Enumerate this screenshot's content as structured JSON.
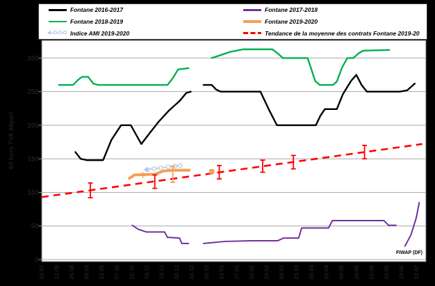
{
  "watermark": "FIWAP (DF)",
  "legend": {
    "col1_keys": [
      "fontane-2016-2017",
      "fontane-2018-2019",
      "indice-ami-2019-2020"
    ],
    "col2_keys": [
      "fontane-2017-2018",
      "fontane-2019-2020",
      "tendance"
    ]
  },
  "chart_data": {
    "type": "line",
    "title": "",
    "y_axis": {
      "title": "€/t hors TVA départ",
      "min": 0,
      "max": 320,
      "ticks": [
        300,
        250,
        200,
        150,
        100,
        50,
        0
      ],
      "grid": true,
      "label_color": "#1e1e1e"
    },
    "x_axis": {
      "tick_labels": [
        "29-07",
        "12-08",
        "26-08",
        "09-09",
        "23-09",
        "07-10",
        "21-10",
        "04-11",
        "18-11",
        "02-12",
        "16-12",
        "30-12",
        "13-01",
        "27-01",
        "10-02",
        "24-02",
        "09-03",
        "23-03",
        "06-04",
        "20-04",
        "04-05",
        "18-05",
        "01-06",
        "15-06",
        "29-06",
        "13-07"
      ],
      "weeks_per_tick": 2,
      "label_color": "#1e1e1e"
    },
    "series": [
      {
        "key": "fontane-2016-2017",
        "name": "Fontane 2016-2017",
        "color": "#000000",
        "width": 2.4,
        "segments": [
          [
            [
              4.5,
              160
            ],
            [
              5.2,
              150
            ],
            [
              6,
              148
            ],
            [
              8.2,
              148
            ],
            [
              9.3,
              178
            ],
            [
              10.6,
              200
            ],
            [
              11.9,
              200
            ],
            [
              12.5,
              188
            ],
            [
              13.3,
              172
            ],
            [
              14.4,
              188
            ],
            [
              15.6,
              205
            ],
            [
              17,
              222
            ],
            [
              18.4,
              236
            ],
            [
              19.3,
              248
            ],
            [
              19.9,
              250
            ]
          ],
          [
            [
              21.6,
              260
            ],
            [
              22.7,
              260
            ],
            [
              23.3,
              253
            ],
            [
              23.9,
              250
            ],
            [
              29.2,
              250
            ],
            [
              30.3,
              224
            ],
            [
              31.4,
              200
            ],
            [
              36.6,
              200
            ],
            [
              37.2,
              214
            ],
            [
              37.8,
              224
            ],
            [
              39.4,
              224
            ],
            [
              40.2,
              246
            ],
            [
              41.3,
              266
            ],
            [
              42,
              275
            ],
            [
              42.7,
              260
            ],
            [
              43.4,
              250
            ],
            [
              47.8,
              250
            ],
            [
              48.8,
              252
            ],
            [
              49.8,
              262
            ]
          ]
        ]
      },
      {
        "key": "fontane-2017-2018",
        "name": "Fontane 2017-2018",
        "color": "#7030A0",
        "width": 2,
        "segments": [
          [
            [
              12.1,
              51
            ],
            [
              12.9,
              45
            ],
            [
              14,
              41
            ],
            [
              16.4,
              41
            ],
            [
              16.8,
              33
            ],
            [
              18.4,
              32
            ],
            [
              18.7,
              24
            ],
            [
              19.6,
              24
            ]
          ],
          [
            [
              21.6,
              24
            ],
            [
              24.5,
              27
            ],
            [
              28,
              28
            ],
            [
              31.5,
              28
            ],
            [
              32.3,
              32
            ],
            [
              34.3,
              32
            ],
            [
              34.7,
              47
            ],
            [
              38.3,
              47
            ],
            [
              38.8,
              58
            ],
            [
              45.7,
              58
            ],
            [
              46.3,
              51
            ],
            [
              47.3,
              51
            ]
          ],
          [
            [
              48.5,
              20
            ],
            [
              49.3,
              37
            ],
            [
              50,
              62
            ],
            [
              50.4,
              85
            ]
          ]
        ]
      },
      {
        "key": "fontane-2018-2019",
        "name": "Fontane 2018-2019",
        "color": "#00B050",
        "width": 2.4,
        "segments": [
          [
            [
              2.3,
              260
            ],
            [
              4.2,
              260
            ],
            [
              4.9,
              268
            ],
            [
              5.4,
              272
            ],
            [
              6.2,
              272
            ],
            [
              6.9,
              262
            ],
            [
              7.5,
              260
            ],
            [
              16.8,
              260
            ],
            [
              17.5,
              270
            ],
            [
              18.2,
              283
            ],
            [
              19.6,
              285
            ]
          ],
          [
            [
              22.7,
              300
            ],
            [
              23.8,
              304
            ],
            [
              25.1,
              309
            ],
            [
              26.9,
              313
            ],
            [
              30.8,
              313
            ],
            [
              31.5,
              307
            ],
            [
              32.2,
              300
            ],
            [
              35.5,
              300
            ],
            [
              36.1,
              280
            ],
            [
              36.5,
              266
            ],
            [
              37.1,
              260
            ],
            [
              38.9,
              260
            ],
            [
              39.4,
              265
            ],
            [
              40.1,
              286
            ],
            [
              40.8,
              300
            ],
            [
              41.6,
              300
            ],
            [
              42.3,
              307
            ],
            [
              42.9,
              311
            ],
            [
              46.4,
              312
            ]
          ]
        ]
      },
      {
        "key": "fontane-2019-2020",
        "name": "Fontane 2019-2020",
        "color": "#F79E56",
        "width": 4,
        "segments": [
          [
            [
              11.7,
              121
            ],
            [
              12.4,
              126
            ],
            [
              15.1,
              127
            ],
            [
              16.3,
              132
            ],
            [
              17.5,
              133
            ],
            [
              19.7,
              133
            ]
          ]
        ]
      },
      {
        "key": "indice-ami-2019-2020",
        "name": "Indice AMI 2019-2020",
        "color": "#B3C6E7",
        "width": 1.6,
        "markers": "circle",
        "arrow_left": true,
        "segments": [
          [
            [
              14.1,
              134
            ],
            [
              15,
              135.5
            ],
            [
              15.9,
              136.5
            ],
            [
              16.9,
              138
            ],
            [
              17.8,
              139
            ],
            [
              18.5,
              140
            ]
          ]
        ]
      }
    ],
    "trend": {
      "key": "tendance",
      "name": "Tendance de la moyenne des contrats Fontane 2019-20",
      "color": "#FF0000",
      "width": 2.6,
      "dash": "10 7",
      "points": [
        [
          0,
          93
        ],
        [
          50.8,
          172
        ]
      ]
    },
    "error_bars": {
      "red": [
        {
          "x": 6.5,
          "v": 103,
          "h": 11
        },
        {
          "x": 15.1,
          "v": 116,
          "h": 10
        },
        {
          "x": 23.7,
          "v": 130,
          "h": 10
        },
        {
          "x": 29.5,
          "v": 139,
          "h": 9
        },
        {
          "x": 33.6,
          "v": 145,
          "h": 10
        },
        {
          "x": 43.1,
          "v": 160,
          "h": 10
        }
      ],
      "orange": [
        {
          "x": 17.5,
          "v": 127,
          "h": 12
        }
      ]
    },
    "square_markers": [
      {
        "x": 22.7,
        "v": 131,
        "color": "#F79E56"
      }
    ],
    "plus_markers": [
      {
        "x": 13.5,
        "v": 126,
        "color": "#F79E56"
      }
    ],
    "colors": {
      "grid": "#A8A8A8",
      "plot_border": "#6e6e6e",
      "plot_bg": "#ffffff",
      "page_bg": "#000000"
    }
  }
}
